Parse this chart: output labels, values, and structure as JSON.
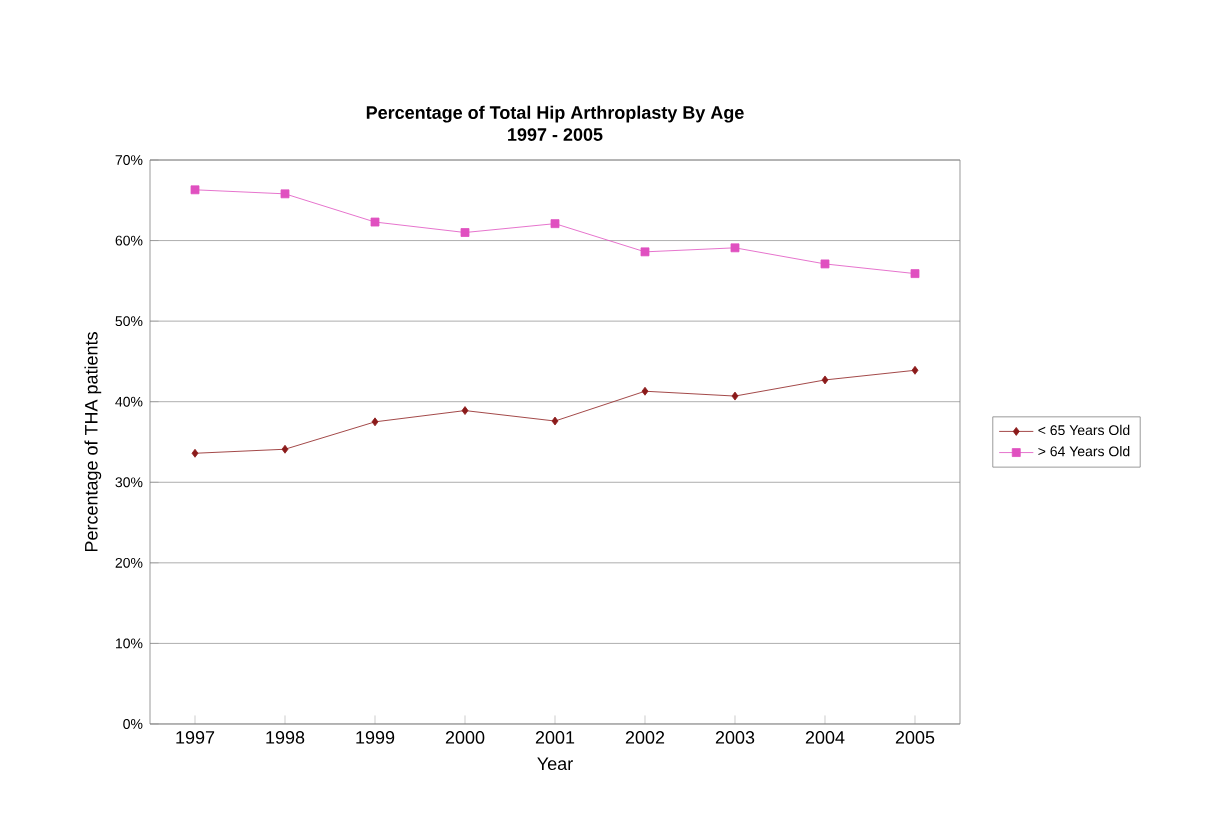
{
  "chart_data": {
    "type": "line",
    "title": "Percentage of Total Hip Arthroplasty By Age\n1997 - 2005",
    "xlabel": "Year",
    "ylabel": "Percentage of THA patients",
    "categories": [
      "1997",
      "1998",
      "1999",
      "2000",
      "2001",
      "2002",
      "2003",
      "2004",
      "2005"
    ],
    "series": [
      {
        "name": "< 65 Years Old",
        "color": "#8b1a1a",
        "marker": "diamond",
        "values": [
          33.6,
          34.1,
          37.5,
          38.9,
          37.6,
          41.3,
          40.7,
          42.7,
          43.9
        ]
      },
      {
        "name": "> 64 Years Old",
        "color": "#e050c0",
        "marker": "square",
        "values": [
          66.3,
          65.8,
          62.3,
          61.0,
          62.1,
          58.6,
          59.1,
          57.1,
          55.9
        ]
      }
    ],
    "ylim": [
      0,
      70
    ],
    "yticks": [
      {
        "value": 0,
        "label": "0%"
      },
      {
        "value": 10,
        "label": "10%"
      },
      {
        "value": 20,
        "label": "20%"
      },
      {
        "value": 30,
        "label": "30%"
      },
      {
        "value": 40,
        "label": "40%"
      },
      {
        "value": 50,
        "label": "50%"
      },
      {
        "value": 60,
        "label": "60%"
      },
      {
        "value": 70,
        "label": "70%"
      }
    ],
    "grid": "y",
    "legend": "right",
    "line_style": "solid"
  }
}
